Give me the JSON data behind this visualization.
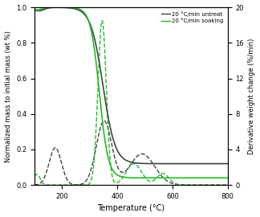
{
  "title": "",
  "xlabel": "Temperature (°C)",
  "ylabel_left": "Normalized mass to initial mass (wt %)",
  "ylabel_right": "Derivative weight change (%/min)",
  "xlim": [
    100,
    800
  ],
  "ylim_left": [
    0.0,
    1.0
  ],
  "ylim_right": [
    0,
    20
  ],
  "yticks_left": [
    0.0,
    0.2,
    0.4,
    0.6,
    0.8,
    1.0
  ],
  "yticks_right": [
    0,
    4,
    8,
    12,
    16,
    20
  ],
  "xticks": [
    200,
    400,
    600,
    800
  ],
  "legend": [
    {
      "label": "20 °C/min untreat",
      "color": "#555555"
    },
    {
      "label": "20 °C/min soaking",
      "color": "#22bb22"
    }
  ],
  "background_color": "#ffffff",
  "color_untreat": "#444444",
  "color_soaking": "#22bb22"
}
